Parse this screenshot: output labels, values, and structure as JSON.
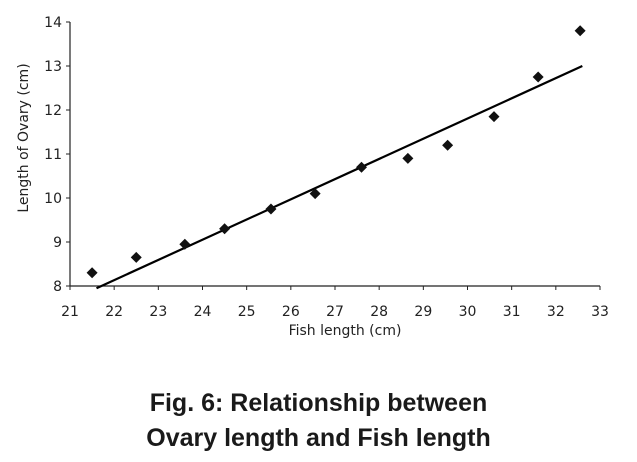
{
  "chart_data": {
    "type": "scatter",
    "title": "",
    "xlabel": "Fish length (cm)",
    "ylabel": "Length of Ovary (cm)",
    "xlim": [
      21,
      33
    ],
    "ylim": [
      8,
      14
    ],
    "xticks": [
      "21",
      "22",
      "23",
      "24",
      "25",
      "26",
      "27",
      "28",
      "29",
      "30",
      "31",
      "32",
      "33"
    ],
    "yticks": [
      "8",
      "9",
      "10",
      "11",
      "12",
      "13",
      "14"
    ],
    "grid": false,
    "series": [
      {
        "marker": "diamond",
        "color": "#111111",
        "x": [
          21.5,
          22.5,
          23.6,
          24.5,
          25.55,
          26.55,
          27.6,
          28.65,
          29.55,
          30.6,
          31.6,
          32.55
        ],
        "y": [
          8.3,
          8.65,
          8.95,
          9.3,
          9.75,
          10.1,
          10.7,
          10.9,
          11.2,
          11.85,
          12.75,
          13.8
        ]
      }
    ],
    "trendline": {
      "type": "linear",
      "x": [
        21.6,
        32.6
      ],
      "y": [
        7.95,
        13.0
      ]
    }
  },
  "caption": {
    "line1": "Fig. 6: Relationship between",
    "line2": "Ovary length and Fish length"
  }
}
